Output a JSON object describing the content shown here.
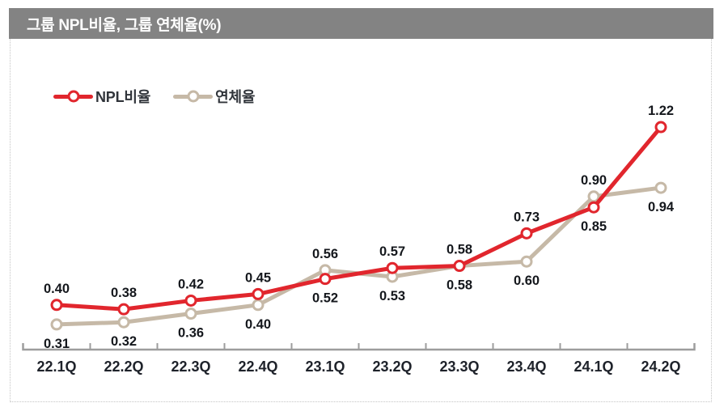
{
  "header": {
    "title": "그룹 NPL비율, 그룹 연체율(%)"
  },
  "chart_data": {
    "type": "line",
    "title": "그룹 NPL비율, 그룹 연체율(%)",
    "unit": "%",
    "categories": [
      "22.1Q",
      "22.2Q",
      "22.3Q",
      "22.4Q",
      "23.1Q",
      "23.2Q",
      "23.3Q",
      "23.4Q",
      "24.1Q",
      "24.2Q"
    ],
    "series": [
      {
        "name": "NPL비율",
        "color": "#e1262d",
        "values": [
          0.4,
          0.38,
          0.42,
          0.45,
          0.52,
          0.57,
          0.58,
          0.73,
          0.85,
          1.22
        ]
      },
      {
        "name": "연체율",
        "color": "#c6b9a7",
        "values": [
          0.31,
          0.32,
          0.36,
          0.4,
          0.56,
          0.53,
          0.58,
          0.6,
          0.9,
          0.94
        ]
      }
    ],
    "legend_position": "top-left",
    "grid": false,
    "y_axis_visible": false,
    "data_labels": true,
    "ylim": [
      0.17,
      1.35
    ]
  },
  "colors": {
    "banner_bg": "#838383",
    "banner_text": "#ffffff",
    "axis": "#9d9d9d",
    "data_label_text": "#14171c",
    "x_label_text": "#1e222a",
    "dotted_border": "#c4c4c4",
    "background": "#ffffff"
  }
}
